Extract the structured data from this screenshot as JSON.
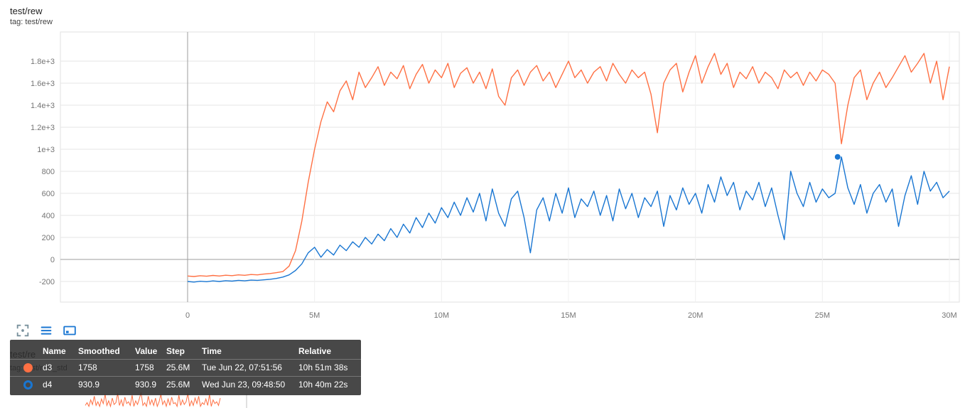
{
  "colors": {
    "orange": "#ff7043",
    "blue": "#1976d2",
    "grid": "#e6e6e6",
    "grid_strong": "#9e9e9e",
    "axis_text": "#757575",
    "tooltip_bg": "#2d2d2d",
    "icon_gray": "#78909c"
  },
  "main_chart": {
    "title": "test/rew",
    "tag": "tag: test/rew"
  },
  "second_chart": {
    "title": "test/re",
    "tag": "tag: test/rew_std"
  },
  "toolbar": {
    "icons": [
      {
        "name": "expand-chart"
      },
      {
        "name": "menu-lines"
      },
      {
        "name": "fit-domain-to-data"
      }
    ]
  },
  "tooltip": {
    "headers": [
      "Name",
      "Smoothed",
      "Value",
      "Step",
      "Time",
      "Relative"
    ],
    "rows": [
      {
        "name": "d3",
        "swatch_color": "#ff7043",
        "swatch_style": "solid",
        "smoothed": "1758",
        "value": "1758",
        "step": "25.6M",
        "time": "Tue Jun 22, 07:51:56",
        "relative": "10h 51m 38s"
      },
      {
        "name": "d4",
        "swatch_color": "#1976d2",
        "swatch_style": "ring",
        "smoothed": "930.9",
        "value": "930.9",
        "step": "25.6M",
        "time": "Wed Jun 23, 09:48:50",
        "relative": "10h 40m 22s"
      }
    ]
  },
  "chart_data": [
    {
      "type": "line",
      "title": "test/rew",
      "xlim": [
        -5,
        30.4
      ],
      "ylim": [
        -390,
        2060
      ],
      "grid": true,
      "x_ticks": [
        {
          "v": 0,
          "label": "0"
        },
        {
          "v": 5,
          "label": "5M"
        },
        {
          "v": 10,
          "label": "10M"
        },
        {
          "v": 15,
          "label": "15M"
        },
        {
          "v": 20,
          "label": "20M"
        },
        {
          "v": 25,
          "label": "25M"
        },
        {
          "v": 30,
          "label": "30M"
        }
      ],
      "y_ticks": [
        {
          "v": 1800,
          "label": "1.8e+3"
        },
        {
          "v": 1600,
          "label": "1.6e+3"
        },
        {
          "v": 1400,
          "label": "1.4e+3"
        },
        {
          "v": 1200,
          "label": "1.2e+3"
        },
        {
          "v": 1000,
          "label": "1e+3"
        },
        {
          "v": 800,
          "label": "800"
        },
        {
          "v": 600,
          "label": "600"
        },
        {
          "v": 400,
          "label": "400"
        },
        {
          "v": 200,
          "label": "200"
        },
        {
          "v": 0,
          "label": "0"
        },
        {
          "v": -200,
          "label": "-200"
        }
      ],
      "series": [
        {
          "name": "d3",
          "color": "#ff7043",
          "x_start": 0,
          "x_step": 0.25,
          "x_unit": "M",
          "values": [
            -150,
            -155,
            -148,
            -152,
            -145,
            -150,
            -143,
            -147,
            -140,
            -144,
            -137,
            -140,
            -133,
            -128,
            -120,
            -110,
            -60,
            80,
            350,
            700,
            1000,
            1250,
            1430,
            1340,
            1530,
            1620,
            1450,
            1700,
            1560,
            1650,
            1750,
            1580,
            1700,
            1640,
            1760,
            1550,
            1680,
            1770,
            1600,
            1720,
            1650,
            1780,
            1560,
            1690,
            1740,
            1600,
            1700,
            1550,
            1730,
            1480,
            1400,
            1650,
            1720,
            1580,
            1700,
            1760,
            1620,
            1700,
            1560,
            1680,
            1800,
            1650,
            1720,
            1600,
            1700,
            1750,
            1620,
            1780,
            1680,
            1600,
            1720,
            1650,
            1700,
            1500,
            1150,
            1600,
            1720,
            1780,
            1520,
            1700,
            1850,
            1600,
            1750,
            1870,
            1680,
            1780,
            1560,
            1700,
            1640,
            1750,
            1600,
            1700,
            1650,
            1550,
            1720,
            1650,
            1700,
            1580,
            1700,
            1620,
            1720,
            1680,
            1600,
            1050,
            1400,
            1650,
            1720,
            1450,
            1600,
            1700,
            1560,
            1650,
            1750,
            1850,
            1700,
            1780,
            1870,
            1600,
            1800,
            1450,
            1750
          ]
        },
        {
          "name": "d4",
          "color": "#1976d2",
          "x_start": 0,
          "x_step": 0.25,
          "x_unit": "M",
          "values": [
            -200,
            -205,
            -198,
            -202,
            -195,
            -200,
            -193,
            -197,
            -190,
            -194,
            -188,
            -190,
            -185,
            -180,
            -172,
            -160,
            -140,
            -100,
            -40,
            60,
            110,
            20,
            90,
            40,
            130,
            80,
            160,
            110,
            200,
            140,
            230,
            170,
            280,
            200,
            320,
            240,
            380,
            290,
            420,
            330,
            470,
            380,
            520,
            400,
            560,
            430,
            600,
            350,
            640,
            420,
            300,
            550,
            620,
            380,
            60,
            450,
            560,
            350,
            600,
            420,
            650,
            380,
            550,
            480,
            620,
            400,
            580,
            350,
            640,
            460,
            600,
            380,
            560,
            480,
            620,
            300,
            580,
            450,
            650,
            500,
            600,
            420,
            680,
            520,
            750,
            580,
            700,
            450,
            620,
            540,
            700,
            480,
            650,
            400,
            180,
            800,
            600,
            480,
            700,
            520,
            640,
            560,
            600,
            930,
            650,
            500,
            680,
            420,
            600,
            680,
            520,
            640,
            300,
            580,
            760,
            500,
            800,
            620,
            700,
            560,
            620
          ]
        }
      ],
      "marker": {
        "series": "d4",
        "x": 25.6,
        "y": 930.9
      }
    },
    {
      "type": "line",
      "title": "test/rew_std",
      "note": "partially visible strip at bottom of viewport",
      "series": [
        {
          "name": "d3",
          "color": "#ff7043",
          "values": [
            2,
            5,
            1,
            8,
            3,
            12,
            2,
            6,
            1,
            9,
            4,
            14,
            2,
            7,
            1,
            10,
            3,
            5,
            15,
            2,
            8,
            1,
            11,
            4,
            6,
            2,
            13,
            1,
            7,
            3,
            9,
            16,
            2,
            5,
            1,
            12,
            3,
            8,
            2,
            10,
            1,
            6,
            14,
            3,
            7,
            1,
            9,
            2,
            11,
            4,
            5,
            1,
            13,
            2,
            8,
            3,
            6,
            15,
            1,
            7,
            2,
            10,
            4,
            12,
            1,
            5,
            3,
            9,
            2,
            14,
            1,
            8,
            4,
            6,
            2,
            10
          ]
        }
      ]
    }
  ]
}
